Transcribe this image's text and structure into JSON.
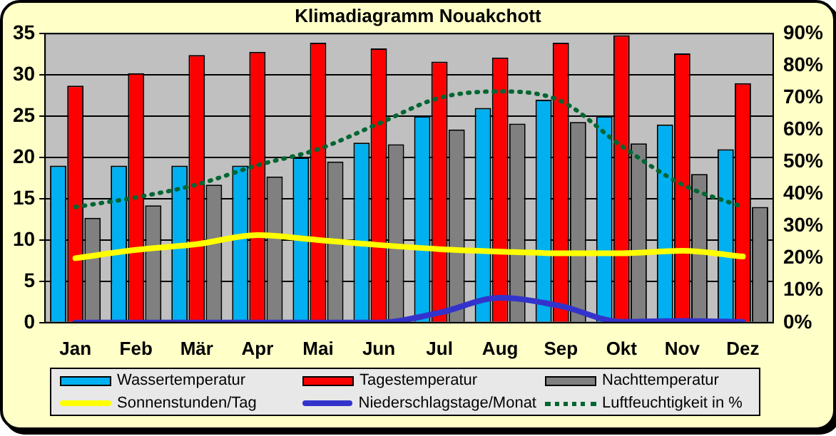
{
  "chart_data": {
    "type": "bar",
    "title": "Klimadiagramm Nouakchott",
    "categories": [
      "Jan",
      "Feb",
      "Mär",
      "Apr",
      "Mai",
      "Jun",
      "Jul",
      "Aug",
      "Sep",
      "Okt",
      "Nov",
      "Dez"
    ],
    "series": [
      {
        "name": "Wassertemperatur",
        "color": "#00b0f0",
        "values": [
          19,
          19,
          19,
          19,
          20,
          21.8,
          25,
          26,
          27,
          25,
          24,
          21
        ]
      },
      {
        "name": "Tagestemperatur",
        "color": "#ff0000",
        "values": [
          28.7,
          30.2,
          32.4,
          32.8,
          33.9,
          33.2,
          31.6,
          32.1,
          33.9,
          34.8,
          32.6,
          29
        ]
      },
      {
        "name": "Nachttemperatur",
        "color": "#808080",
        "values": [
          12.7,
          14.2,
          16.7,
          17.7,
          19.5,
          21.6,
          23.4,
          24.1,
          24.3,
          21.7,
          18,
          14
        ]
      },
      {
        "name": "Sonnenstunden/Tag",
        "type": "line",
        "color": "#ffff00",
        "line_style": "solid",
        "values": [
          7.8,
          8.8,
          9.5,
          10.6,
          10,
          9.4,
          8.9,
          8.6,
          8.4,
          8.4,
          8.7,
          8
        ]
      },
      {
        "name": "Niederschlagstage/Monat",
        "type": "line",
        "color": "#3333cc",
        "line_style": "solid",
        "values": [
          0,
          0,
          0,
          0,
          0,
          0,
          1.2,
          3,
          2,
          0.1,
          0.2,
          0.1
        ]
      },
      {
        "name": "Luftfeuchtigkeit in %",
        "type": "line",
        "color": "#006633",
        "line_style": "dotted",
        "axis": "y2",
        "values": [
          36,
          39,
          43,
          49,
          54,
          62,
          70,
          72,
          69,
          55,
          43,
          36
        ]
      }
    ],
    "ylim": [
      0,
      35
    ],
    "yticks": [
      0,
      5,
      10,
      15,
      20,
      25,
      30,
      35
    ],
    "y2lim": [
      0,
      90
    ],
    "y2ticks": [
      {
        "value": 0,
        "label": "0%"
      },
      {
        "value": 10,
        "label": "10%"
      },
      {
        "value": 20,
        "label": "20%"
      },
      {
        "value": 30,
        "label": "30%"
      },
      {
        "value": 40,
        "label": "40%"
      },
      {
        "value": 50,
        "label": "50%"
      },
      {
        "value": 60,
        "label": "60%"
      },
      {
        "value": 70,
        "label": "70%"
      },
      {
        "value": 80,
        "label": "80%"
      },
      {
        "value": 90,
        "label": "90%"
      }
    ],
    "grid": "y",
    "legend": "bottom",
    "marker": "none"
  }
}
